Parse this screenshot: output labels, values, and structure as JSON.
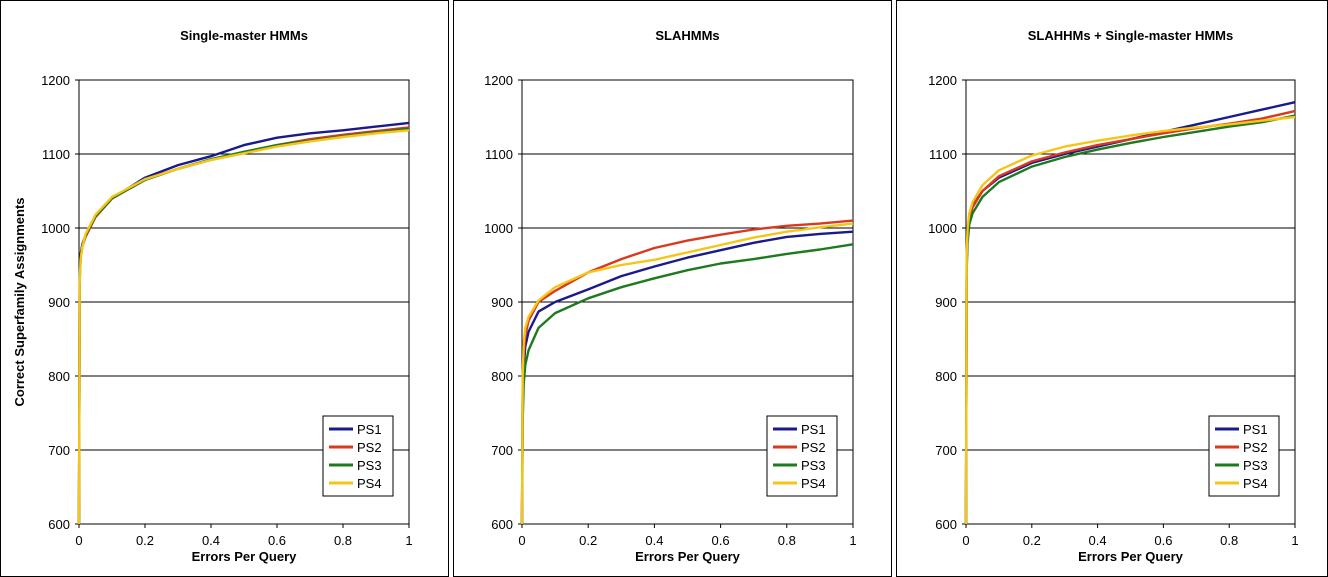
{
  "chart_data": [
    {
      "type": "line",
      "title": "Single-master HMMs",
      "xlabel": "Errors Per Query",
      "ylabel": "Correct Superfamily Assignments",
      "xlim": [
        0,
        1
      ],
      "ylim": [
        600,
        1200
      ],
      "xticks": [
        "0",
        "0.2",
        "0.4",
        "0.6",
        "0.8",
        "1"
      ],
      "yticks": [
        "600",
        "700",
        "800",
        "900",
        "1000",
        "1100",
        "1200"
      ],
      "grid": "horizontal",
      "legend": "bottom-right",
      "series": [
        {
          "name": "PS1",
          "color": "#1a1a8c",
          "x": [
            0,
            0.002,
            0.005,
            0.01,
            0.02,
            0.05,
            0.1,
            0.2,
            0.3,
            0.4,
            0.5,
            0.6,
            0.7,
            0.8,
            0.9,
            1.0
          ],
          "y": [
            600,
            940,
            965,
            978,
            990,
            1015,
            1040,
            1068,
            1085,
            1097,
            1112,
            1122,
            1128,
            1132,
            1137,
            1142
          ]
        },
        {
          "name": "PS2",
          "color": "#d93a1e",
          "x": [
            0,
            0.002,
            0.005,
            0.01,
            0.02,
            0.05,
            0.1,
            0.2,
            0.3,
            0.4,
            0.5,
            0.6,
            0.7,
            0.8,
            0.9,
            1.0
          ],
          "y": [
            600,
            930,
            960,
            975,
            988,
            1015,
            1040,
            1065,
            1080,
            1092,
            1102,
            1112,
            1120,
            1126,
            1131,
            1136
          ]
        },
        {
          "name": "PS3",
          "color": "#1e7a1e",
          "x": [
            0,
            0.002,
            0.005,
            0.01,
            0.02,
            0.05,
            0.1,
            0.2,
            0.3,
            0.4,
            0.5,
            0.6,
            0.7,
            0.8,
            0.9,
            1.0
          ],
          "y": [
            600,
            935,
            962,
            976,
            990,
            1016,
            1040,
            1065,
            1080,
            1093,
            1103,
            1112,
            1118,
            1124,
            1129,
            1134
          ]
        },
        {
          "name": "PS4",
          "color": "#f5c518",
          "x": [
            0,
            0.002,
            0.005,
            0.01,
            0.02,
            0.05,
            0.1,
            0.2,
            0.3,
            0.4,
            0.5,
            0.6,
            0.7,
            0.8,
            0.9,
            1.0
          ],
          "y": [
            600,
            925,
            958,
            974,
            992,
            1018,
            1042,
            1066,
            1080,
            1092,
            1101,
            1110,
            1117,
            1123,
            1128,
            1132
          ]
        }
      ]
    },
    {
      "type": "line",
      "title": "SLAHMMs",
      "xlabel": "Errors Per Query",
      "ylabel": "",
      "xlim": [
        0,
        1
      ],
      "ylim": [
        600,
        1200
      ],
      "xticks": [
        "0",
        "0.2",
        "0.4",
        "0.6",
        "0.8",
        "1"
      ],
      "yticks": [
        "600",
        "700",
        "800",
        "900",
        "1000",
        "1100",
        "1200"
      ],
      "grid": "horizontal",
      "legend": "bottom-right",
      "series": [
        {
          "name": "PS1",
          "color": "#1a1a8c",
          "x": [
            0,
            0.002,
            0.005,
            0.01,
            0.02,
            0.05,
            0.1,
            0.2,
            0.3,
            0.4,
            0.5,
            0.6,
            0.7,
            0.8,
            0.9,
            1.0
          ],
          "y": [
            600,
            780,
            815,
            840,
            860,
            887,
            900,
            917,
            935,
            948,
            960,
            970,
            980,
            988,
            992,
            995
          ]
        },
        {
          "name": "PS2",
          "color": "#d93a1e",
          "x": [
            0,
            0.002,
            0.005,
            0.01,
            0.02,
            0.05,
            0.1,
            0.2,
            0.3,
            0.4,
            0.5,
            0.6,
            0.7,
            0.8,
            0.9,
            1.0
          ],
          "y": [
            600,
            790,
            830,
            855,
            875,
            900,
            915,
            940,
            958,
            973,
            983,
            991,
            998,
            1003,
            1006,
            1010
          ]
        },
        {
          "name": "PS3",
          "color": "#1e7a1e",
          "x": [
            0,
            0.002,
            0.005,
            0.01,
            0.02,
            0.05,
            0.1,
            0.2,
            0.3,
            0.4,
            0.5,
            0.6,
            0.7,
            0.8,
            0.9,
            1.0
          ],
          "y": [
            600,
            740,
            790,
            815,
            835,
            865,
            885,
            905,
            920,
            932,
            943,
            952,
            958,
            965,
            971,
            978
          ]
        },
        {
          "name": "PS4",
          "color": "#f5c518",
          "x": [
            0,
            0.002,
            0.005,
            0.01,
            0.02,
            0.05,
            0.1,
            0.2,
            0.3,
            0.4,
            0.5,
            0.6,
            0.7,
            0.8,
            0.9,
            1.0
          ],
          "y": [
            600,
            800,
            845,
            865,
            880,
            902,
            920,
            940,
            950,
            957,
            967,
            977,
            987,
            995,
            1001,
            1006
          ]
        }
      ]
    },
    {
      "type": "line",
      "title": "SLAHHMs + Single-master HMMs",
      "xlabel": "Errors Per Query",
      "ylabel": "",
      "xlim": [
        0,
        1
      ],
      "ylim": [
        600,
        1200
      ],
      "xticks": [
        "0",
        "0.2",
        "0.4",
        "0.6",
        "0.8",
        "1"
      ],
      "yticks": [
        "600",
        "700",
        "800",
        "900",
        "1000",
        "1100",
        "1200"
      ],
      "grid": "horizontal",
      "legend": "bottom-right",
      "series": [
        {
          "name": "PS1",
          "color": "#1a1a8c",
          "x": [
            0,
            0.002,
            0.005,
            0.01,
            0.02,
            0.05,
            0.1,
            0.2,
            0.3,
            0.4,
            0.5,
            0.6,
            0.7,
            0.8,
            0.9,
            1.0
          ],
          "y": [
            600,
            960,
            995,
            1015,
            1030,
            1050,
            1068,
            1088,
            1100,
            1110,
            1120,
            1130,
            1140,
            1150,
            1160,
            1170
          ]
        },
        {
          "name": "PS2",
          "color": "#d93a1e",
          "x": [
            0,
            0.002,
            0.005,
            0.01,
            0.02,
            0.05,
            0.1,
            0.2,
            0.3,
            0.4,
            0.5,
            0.6,
            0.7,
            0.8,
            0.9,
            1.0
          ],
          "y": [
            600,
            955,
            990,
            1012,
            1028,
            1050,
            1070,
            1090,
            1102,
            1112,
            1120,
            1128,
            1135,
            1141,
            1148,
            1158
          ]
        },
        {
          "name": "PS3",
          "color": "#1e7a1e",
          "x": [
            0,
            0.002,
            0.005,
            0.01,
            0.02,
            0.05,
            0.1,
            0.2,
            0.3,
            0.4,
            0.5,
            0.6,
            0.7,
            0.8,
            0.9,
            1.0
          ],
          "y": [
            600,
            945,
            980,
            1005,
            1020,
            1042,
            1062,
            1083,
            1096,
            1106,
            1115,
            1123,
            1130,
            1137,
            1143,
            1152
          ]
        },
        {
          "name": "PS4",
          "color": "#f5c518",
          "x": [
            0,
            0.002,
            0.005,
            0.01,
            0.02,
            0.05,
            0.1,
            0.2,
            0.3,
            0.4,
            0.5,
            0.6,
            0.7,
            0.8,
            0.9,
            1.0
          ],
          "y": [
            600,
            965,
            1000,
            1020,
            1035,
            1058,
            1078,
            1098,
            1110,
            1118,
            1125,
            1131,
            1136,
            1140,
            1145,
            1150
          ]
        }
      ]
    }
  ]
}
